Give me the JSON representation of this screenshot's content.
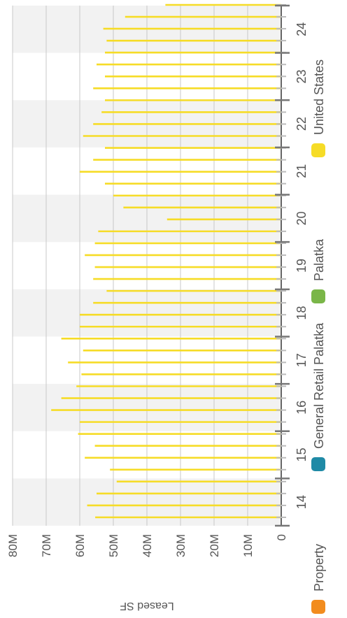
{
  "chart_data": {
    "type": "bar",
    "orientation": "rotated-90",
    "ylabel": "Leased SF",
    "ylim": [
      0,
      80000000
    ],
    "yticks": [
      "0",
      "10M",
      "20M",
      "30M",
      "40M",
      "50M",
      "60M",
      "70M",
      "80M"
    ],
    "ytick_values": [
      0,
      10000000,
      20000000,
      30000000,
      40000000,
      50000000,
      60000000,
      70000000,
      80000000
    ],
    "grid": true,
    "legend_position": "bottom",
    "year_labels": [
      "14",
      "15",
      "16",
      "17",
      "18",
      "19",
      "20",
      "21",
      "22",
      "23",
      "24"
    ],
    "series": [
      {
        "name": "Property",
        "color": "#f28c1e",
        "values": []
      },
      {
        "name": "General Retail Palatka",
        "color": "#1f8aa6",
        "values": []
      },
      {
        "name": "Palatka",
        "color": "#7ab648",
        "values": []
      },
      {
        "name": "United States",
        "color": "#f6dc27",
        "values": [
          55.4,
          57.8,
          55.0,
          49.0,
          51.0,
          58.5,
          55.5,
          60.5,
          60.0,
          68.5,
          65.5,
          61.0,
          59.5,
          63.5,
          59.0,
          65.5,
          60.0,
          60.0,
          56.0,
          52.0,
          56.0,
          55.5,
          58.5,
          55.5,
          54.5,
          34.0,
          47.0,
          50.0,
          52.5,
          60.0,
          56.0,
          52.5,
          59.0,
          56.0,
          53.5,
          52.5,
          56.0,
          52.5,
          55.0,
          52.5,
          52.0,
          53.0,
          46.5,
          34.5
        ]
      }
    ]
  }
}
